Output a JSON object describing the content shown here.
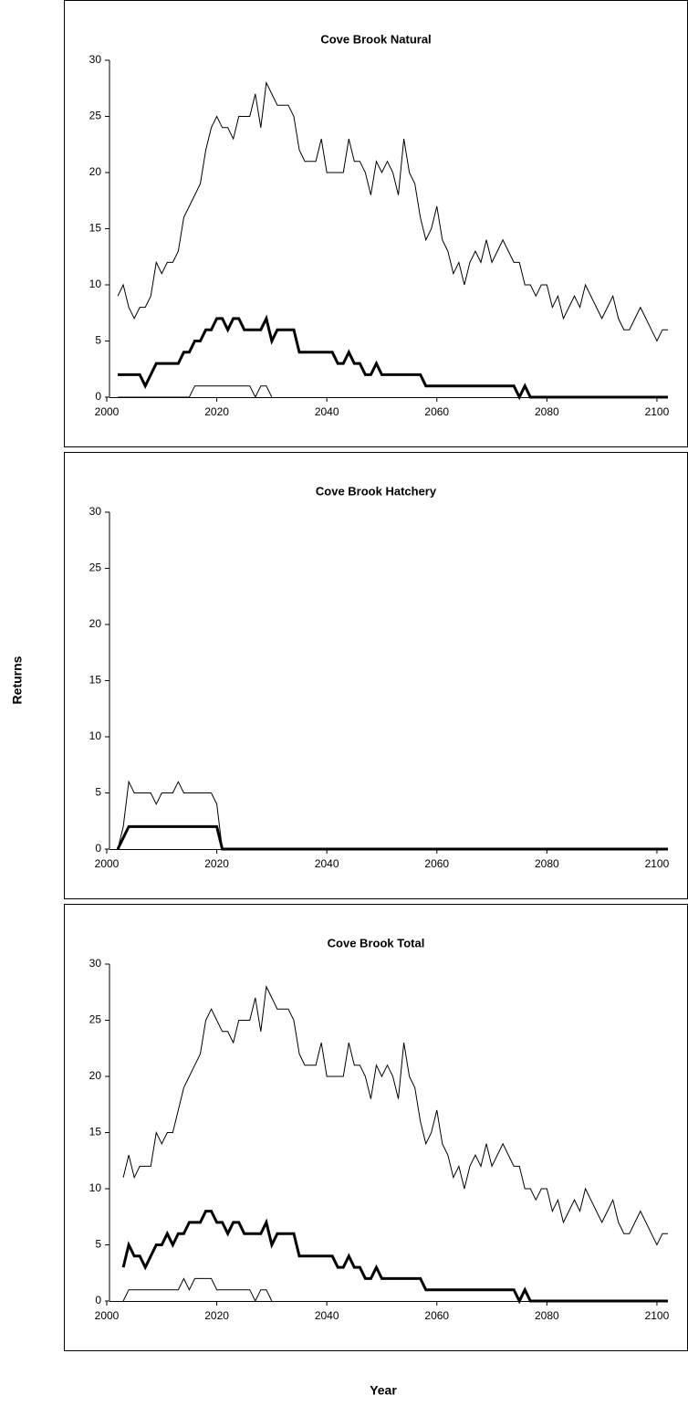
{
  "ylabel": "Returns",
  "xlabel": "Year",
  "chart_data": [
    {
      "type": "line",
      "title": "Cove Brook Natural",
      "x": [
        2002,
        2003,
        2004,
        2005,
        2006,
        2007,
        2008,
        2009,
        2010,
        2011,
        2012,
        2013,
        2014,
        2015,
        2016,
        2017,
        2018,
        2019,
        2020,
        2021,
        2022,
        2023,
        2024,
        2025,
        2026,
        2027,
        2028,
        2029,
        2030,
        2031,
        2032,
        2033,
        2034,
        2035,
        2036,
        2037,
        2038,
        2039,
        2040,
        2041,
        2042,
        2043,
        2044,
        2045,
        2046,
        2047,
        2048,
        2049,
        2050,
        2051,
        2052,
        2053,
        2054,
        2055,
        2056,
        2057,
        2058,
        2059,
        2060,
        2061,
        2062,
        2063,
        2064,
        2065,
        2066,
        2067,
        2068,
        2069,
        2070,
        2071,
        2072,
        2073,
        2074,
        2075,
        2076,
        2077,
        2078,
        2079,
        2080,
        2081,
        2082,
        2083,
        2084,
        2085,
        2086,
        2087,
        2088,
        2089,
        2090,
        2091,
        2092,
        2093,
        2094,
        2095,
        2096,
        2097,
        2098,
        2099,
        2100,
        2101,
        2102
      ],
      "series": [
        {
          "color": "#000000",
          "line_width": 1,
          "values": [
            9,
            10,
            8,
            7,
            8,
            8,
            9,
            12,
            11,
            12,
            12,
            13,
            16,
            17,
            18,
            19,
            22,
            24,
            25,
            24,
            24,
            23,
            25,
            25,
            25,
            27,
            24,
            28,
            27,
            26,
            26,
            26,
            25,
            22,
            21,
            21,
            21,
            23,
            20,
            20,
            20,
            20,
            23,
            21,
            21,
            20,
            18,
            21,
            20,
            21,
            20,
            18,
            23,
            20,
            19,
            16,
            14,
            15,
            17,
            14,
            13,
            11,
            12,
            10,
            12,
            13,
            12,
            14,
            12,
            13,
            14,
            13,
            12,
            12,
            10,
            10,
            9,
            10,
            10,
            8,
            9,
            7,
            8,
            9,
            8,
            10,
            9,
            8,
            7,
            8,
            9,
            7,
            6,
            6,
            7,
            8,
            7,
            6,
            5,
            6,
            6
          ]
        },
        {
          "color": "#000000",
          "line_width": 3,
          "values": [
            2,
            2,
            2,
            2,
            2,
            1,
            2,
            3,
            3,
            3,
            3,
            3,
            4,
            4,
            5,
            5,
            6,
            6,
            7,
            7,
            6,
            7,
            7,
            6,
            6,
            6,
            6,
            7,
            5,
            6,
            6,
            6,
            6,
            4,
            4,
            4,
            4,
            4,
            4,
            4,
            3,
            3,
            4,
            3,
            3,
            2,
            2,
            3,
            2,
            2,
            2,
            2,
            2,
            2,
            2,
            2,
            1,
            1,
            1,
            1,
            1,
            1,
            1,
            1,
            1,
            1,
            1,
            1,
            1,
            1,
            1,
            1,
            1,
            0,
            1,
            0,
            0,
            0,
            0,
            0,
            0,
            0,
            0,
            0,
            0,
            0,
            0,
            0,
            0,
            0,
            0,
            0,
            0,
            0,
            0,
            0,
            0,
            0,
            0,
            0,
            0
          ]
        },
        {
          "color": "#000000",
          "line_width": 1,
          "values": [
            0,
            0,
            0,
            0,
            0,
            0,
            0,
            0,
            0,
            0,
            0,
            0,
            0,
            0,
            1,
            1,
            1,
            1,
            1,
            1,
            1,
            1,
            1,
            1,
            1,
            0,
            1,
            1,
            0,
            null,
            null,
            null,
            null,
            null,
            null,
            null,
            null,
            null,
            null,
            null,
            null,
            null,
            null,
            null,
            null,
            null,
            null,
            null,
            null,
            null,
            null,
            null,
            null,
            null,
            null,
            null,
            null,
            null,
            null,
            null,
            null,
            null,
            null,
            null,
            null,
            null,
            null,
            null,
            null,
            null,
            null,
            null,
            null,
            null,
            null,
            null,
            null,
            null,
            null,
            null,
            null,
            null,
            null,
            null,
            null,
            null,
            null,
            null,
            null,
            null,
            null,
            null,
            null,
            null,
            null,
            null,
            null,
            null,
            null,
            null,
            null
          ]
        }
      ],
      "xlim": [
        2000,
        2102
      ],
      "xticks": [
        2000,
        2020,
        2040,
        2060,
        2080,
        2100
      ],
      "ylim": [
        0,
        30
      ],
      "yticks": [
        0,
        5,
        10,
        15,
        20,
        25,
        30
      ],
      "grid": false
    },
    {
      "type": "line",
      "title": "Cove Brook Hatchery",
      "x": [
        2002,
        2003,
        2004,
        2005,
        2006,
        2007,
        2008,
        2009,
        2010,
        2011,
        2012,
        2013,
        2014,
        2015,
        2016,
        2017,
        2018,
        2019,
        2020,
        2021,
        2022,
        2023,
        2024,
        2025,
        2026,
        2027,
        2028,
        2029,
        2030,
        2031,
        2032,
        2033,
        2034,
        2035,
        2036,
        2037,
        2038,
        2039,
        2040,
        2041,
        2042,
        2043,
        2044,
        2045,
        2046,
        2047,
        2048,
        2049,
        2050,
        2051,
        2052,
        2053,
        2054,
        2055,
        2056,
        2057,
        2058,
        2059,
        2060,
        2061,
        2062,
        2063,
        2064,
        2065,
        2066,
        2067,
        2068,
        2069,
        2070,
        2071,
        2072,
        2073,
        2074,
        2075,
        2076,
        2077,
        2078,
        2079,
        2080,
        2081,
        2082,
        2083,
        2084,
        2085,
        2086,
        2087,
        2088,
        2089,
        2090,
        2091,
        2092,
        2093,
        2094,
        2095,
        2096,
        2097,
        2098,
        2099,
        2100,
        2101,
        2102
      ],
      "series": [
        {
          "color": "#000000",
          "line_width": 1,
          "values": [
            0,
            2,
            6,
            5,
            5,
            5,
            5,
            4,
            5,
            5,
            5,
            6,
            5,
            5,
            5,
            5,
            5,
            5,
            4,
            0,
            0,
            0,
            0,
            0,
            0,
            0,
            0,
            0,
            0,
            0,
            0,
            0,
            0,
            0,
            0,
            0,
            0,
            0,
            0,
            0,
            0,
            0,
            0,
            0,
            0,
            0,
            0,
            0,
            0,
            0,
            0,
            0,
            0,
            0,
            0,
            0,
            0,
            0,
            0,
            0,
            0,
            0,
            0,
            0,
            0,
            0,
            0,
            0,
            0,
            0,
            0,
            0,
            0,
            0,
            0,
            0,
            0,
            0,
            0,
            0,
            0,
            0,
            0,
            0,
            0,
            0,
            0,
            0,
            0,
            0,
            0,
            0,
            0,
            0,
            0,
            0,
            0,
            0,
            0,
            0,
            0
          ]
        },
        {
          "color": "#000000",
          "line_width": 3,
          "values": [
            0,
            1,
            2,
            2,
            2,
            2,
            2,
            2,
            2,
            2,
            2,
            2,
            2,
            2,
            2,
            2,
            2,
            2,
            2,
            0,
            0,
            0,
            0,
            0,
            0,
            0,
            0,
            0,
            0,
            0,
            0,
            0,
            0,
            0,
            0,
            0,
            0,
            0,
            0,
            0,
            0,
            0,
            0,
            0,
            0,
            0,
            0,
            0,
            0,
            0,
            0,
            0,
            0,
            0,
            0,
            0,
            0,
            0,
            0,
            0,
            0,
            0,
            0,
            0,
            0,
            0,
            0,
            0,
            0,
            0,
            0,
            0,
            0,
            0,
            0,
            0,
            0,
            0,
            0,
            0,
            0,
            0,
            0,
            0,
            0,
            0,
            0,
            0,
            0,
            0,
            0,
            0,
            0,
            0,
            0,
            0,
            0,
            0,
            0,
            0,
            0
          ]
        }
      ],
      "xlim": [
        2000,
        2102
      ],
      "xticks": [
        2000,
        2020,
        2040,
        2060,
        2080,
        2100
      ],
      "ylim": [
        0,
        30
      ],
      "yticks": [
        0,
        5,
        10,
        15,
        20,
        25,
        30
      ],
      "grid": false
    },
    {
      "type": "line",
      "title": "Cove Brook Total",
      "x": [
        2002,
        2003,
        2004,
        2005,
        2006,
        2007,
        2008,
        2009,
        2010,
        2011,
        2012,
        2013,
        2014,
        2015,
        2016,
        2017,
        2018,
        2019,
        2020,
        2021,
        2022,
        2023,
        2024,
        2025,
        2026,
        2027,
        2028,
        2029,
        2030,
        2031,
        2032,
        2033,
        2034,
        2035,
        2036,
        2037,
        2038,
        2039,
        2040,
        2041,
        2042,
        2043,
        2044,
        2045,
        2046,
        2047,
        2048,
        2049,
        2050,
        2051,
        2052,
        2053,
        2054,
        2055,
        2056,
        2057,
        2058,
        2059,
        2060,
        2061,
        2062,
        2063,
        2064,
        2065,
        2066,
        2067,
        2068,
        2069,
        2070,
        2071,
        2072,
        2073,
        2074,
        2075,
        2076,
        2077,
        2078,
        2079,
        2080,
        2081,
        2082,
        2083,
        2084,
        2085,
        2086,
        2087,
        2088,
        2089,
        2090,
        2091,
        2092,
        2093,
        2094,
        2095,
        2096,
        2097,
        2098,
        2099,
        2100,
        2101,
        2102
      ],
      "series": [
        {
          "color": "#000000",
          "line_width": 1,
          "values": [
            null,
            11,
            13,
            11,
            12,
            12,
            12,
            15,
            14,
            15,
            15,
            17,
            19,
            20,
            21,
            22,
            25,
            26,
            25,
            24,
            24,
            23,
            25,
            25,
            25,
            27,
            24,
            28,
            27,
            26,
            26,
            26,
            25,
            22,
            21,
            21,
            21,
            23,
            20,
            20,
            20,
            20,
            23,
            21,
            21,
            20,
            18,
            21,
            20,
            21,
            20,
            18,
            23,
            20,
            19,
            16,
            14,
            15,
            17,
            14,
            13,
            11,
            12,
            10,
            12,
            13,
            12,
            14,
            12,
            13,
            14,
            13,
            12,
            12,
            10,
            10,
            9,
            10,
            10,
            8,
            9,
            7,
            8,
            9,
            8,
            10,
            9,
            8,
            7,
            8,
            9,
            7,
            6,
            6,
            7,
            8,
            7,
            6,
            5,
            6,
            6
          ]
        },
        {
          "color": "#000000",
          "line_width": 3,
          "values": [
            null,
            3,
            5,
            4,
            4,
            3,
            4,
            5,
            5,
            6,
            5,
            6,
            6,
            7,
            7,
            7,
            8,
            8,
            7,
            7,
            6,
            7,
            7,
            6,
            6,
            6,
            6,
            7,
            5,
            6,
            6,
            6,
            6,
            4,
            4,
            4,
            4,
            4,
            4,
            4,
            3,
            3,
            4,
            3,
            3,
            2,
            2,
            3,
            2,
            2,
            2,
            2,
            2,
            2,
            2,
            2,
            1,
            1,
            1,
            1,
            1,
            1,
            1,
            1,
            1,
            1,
            1,
            1,
            1,
            1,
            1,
            1,
            1,
            0,
            1,
            0,
            0,
            0,
            0,
            0,
            0,
            0,
            0,
            0,
            0,
            0,
            0,
            0,
            0,
            0,
            0,
            0,
            0,
            0,
            0,
            0,
            0,
            0,
            0,
            0,
            0
          ]
        },
        {
          "color": "#000000",
          "line_width": 1,
          "values": [
            null,
            0,
            1,
            1,
            1,
            1,
            1,
            1,
            1,
            1,
            1,
            1,
            2,
            1,
            2,
            2,
            2,
            2,
            1,
            1,
            1,
            1,
            1,
            1,
            1,
            0,
            1,
            1,
            0,
            null,
            null,
            null,
            null,
            null,
            null,
            null,
            null,
            null,
            null,
            null,
            null,
            null,
            null,
            null,
            null,
            null,
            null,
            null,
            null,
            null,
            null,
            null,
            null,
            null,
            null,
            null,
            null,
            null,
            null,
            null,
            null,
            null,
            null,
            null,
            null,
            null,
            null,
            null,
            null,
            null,
            null,
            null,
            null,
            null,
            null,
            null,
            null,
            null,
            null,
            null,
            null,
            null,
            null,
            null,
            null,
            null,
            null,
            null,
            null,
            null,
            null,
            null,
            null,
            null,
            null,
            null,
            null,
            null,
            null,
            null,
            null
          ]
        }
      ],
      "xlim": [
        2000,
        2102
      ],
      "xticks": [
        2000,
        2020,
        2040,
        2060,
        2080,
        2100
      ],
      "ylim": [
        0,
        30
      ],
      "yticks": [
        0,
        5,
        10,
        15,
        20,
        25,
        30
      ],
      "grid": false
    }
  ]
}
